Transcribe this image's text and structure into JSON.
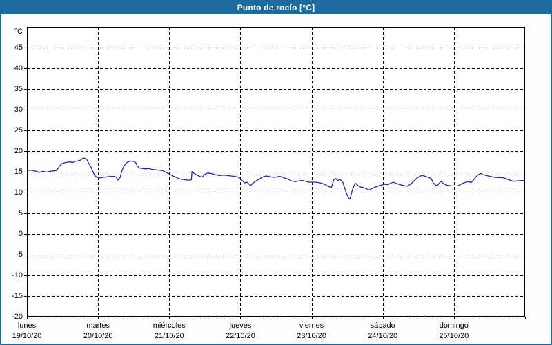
{
  "window": {
    "title": "Punto de rocío [°C]"
  },
  "theme": {
    "titlebar_bg": "#1d6a9e",
    "frame_border": "#1d689c",
    "plot_border": "#000000",
    "grid_color": "#000000",
    "line_color": "#2323bb",
    "text_color": "#000000",
    "background": "#fcfdfc"
  },
  "chart_data": {
    "type": "line",
    "title": "Punto de rocío [°C]",
    "y_axis": {
      "unit": "°C",
      "ylim": [
        -20,
        50
      ],
      "tick_step": 5,
      "ticks": [
        45,
        40,
        35,
        30,
        25,
        20,
        15,
        10,
        5,
        0,
        -5,
        -10,
        -15,
        -20
      ]
    },
    "grid": "dashed",
    "legend": "none",
    "x_days": [
      {
        "name": "lunes",
        "date": "19/10/20"
      },
      {
        "name": "martes",
        "date": "20/10/20"
      },
      {
        "name": "miércoles",
        "date": "21/10/20"
      },
      {
        "name": "jueves",
        "date": "22/10/20"
      },
      {
        "name": "viernes",
        "date": "23/10/20"
      },
      {
        "name": "sábado",
        "date": "24/10/20"
      },
      {
        "name": "domingo",
        "date": "25/10/20"
      }
    ],
    "series": [
      {
        "name": "Punto de rocío",
        "color": "#2323bb",
        "x_unit": "days_since_2020-10-19",
        "segments": [
          [
            [
              0.01,
              15.3
            ],
            [
              0.06,
              15.4
            ],
            [
              0.1,
              15.2
            ],
            [
              0.14,
              15.1
            ],
            [
              0.17,
              14.8
            ],
            [
              0.2,
              15.0
            ],
            [
              0.23,
              15.1
            ],
            [
              0.27,
              14.9
            ],
            [
              0.32,
              15.1
            ],
            [
              0.37,
              15.2
            ],
            [
              0.42,
              15.3
            ],
            [
              0.45,
              16.2
            ],
            [
              0.48,
              16.8
            ],
            [
              0.51,
              17.1
            ],
            [
              0.56,
              17.3
            ],
            [
              0.61,
              17.4
            ],
            [
              0.64,
              17.2
            ],
            [
              0.67,
              17.5
            ],
            [
              0.71,
              17.6
            ],
            [
              0.75,
              17.8
            ],
            [
              0.78,
              18.2
            ],
            [
              0.81,
              18.3
            ],
            [
              0.84,
              18.0
            ],
            [
              0.87,
              17.0
            ],
            [
              0.9,
              16.2
            ],
            [
              0.92,
              15.3
            ],
            [
              0.95,
              14.2
            ],
            [
              0.98,
              13.7
            ],
            [
              1.01,
              13.5
            ],
            [
              1.05,
              13.6
            ],
            [
              1.09,
              13.7
            ],
            [
              1.13,
              13.8
            ],
            [
              1.18,
              13.9
            ],
            [
              1.23,
              13.9
            ],
            [
              1.26,
              13.6
            ],
            [
              1.28,
              13.0
            ],
            [
              1.31,
              13.6
            ],
            [
              1.33,
              15.0
            ],
            [
              1.36,
              16.3
            ],
            [
              1.39,
              17.0
            ],
            [
              1.42,
              17.4
            ],
            [
              1.46,
              17.6
            ],
            [
              1.5,
              17.5
            ],
            [
              1.53,
              17.2
            ],
            [
              1.55,
              16.4
            ],
            [
              1.58,
              15.9
            ],
            [
              1.62,
              15.8
            ],
            [
              1.67,
              15.7
            ],
            [
              1.71,
              15.8
            ],
            [
              1.75,
              15.6
            ],
            [
              1.8,
              15.5
            ],
            [
              1.85,
              15.4
            ],
            [
              1.9,
              15.3
            ],
            [
              1.94,
              15.0
            ],
            [
              1.97,
              14.7
            ],
            [
              2.0,
              14.5
            ],
            [
              2.04,
              14.1
            ],
            [
              2.09,
              13.7
            ],
            [
              2.13,
              13.4
            ],
            [
              2.17,
              13.2
            ],
            [
              2.21,
              13.1
            ],
            [
              2.25,
              13.0
            ],
            [
              2.29,
              13.0
            ],
            [
              2.31,
              13.1
            ],
            [
              2.32,
              15.1
            ],
            [
              2.35,
              14.6
            ],
            [
              2.39,
              14.2
            ],
            [
              2.43,
              13.9
            ],
            [
              2.46,
              13.7
            ],
            [
              2.5,
              14.4
            ],
            [
              2.54,
              14.7
            ],
            [
              2.58,
              14.6
            ],
            [
              2.63,
              14.4
            ],
            [
              2.67,
              14.2
            ],
            [
              2.72,
              14.1
            ],
            [
              2.77,
              14.2
            ],
            [
              2.82,
              14.1
            ],
            [
              2.87,
              14.0
            ],
            [
              2.92,
              13.9
            ],
            [
              2.97,
              13.7
            ],
            [
              3.0,
              13.3
            ],
            [
              3.03,
              12.8
            ],
            [
              3.06,
              12.3
            ],
            [
              3.09,
              12.5
            ],
            [
              3.12,
              12.1
            ],
            [
              3.14,
              11.6
            ],
            [
              3.17,
              12.2
            ],
            [
              3.21,
              12.7
            ],
            [
              3.25,
              13.1
            ],
            [
              3.29,
              13.5
            ],
            [
              3.32,
              13.8
            ],
            [
              3.36,
              14.0
            ],
            [
              3.4,
              13.9
            ],
            [
              3.45,
              13.7
            ],
            [
              3.5,
              13.7
            ],
            [
              3.54,
              13.9
            ],
            [
              3.58,
              13.8
            ],
            [
              3.62,
              13.5
            ],
            [
              3.67,
              13.2
            ],
            [
              3.72,
              12.8
            ],
            [
              3.77,
              12.6
            ],
            [
              3.82,
              12.8
            ],
            [
              3.87,
              12.9
            ],
            [
              3.92,
              12.7
            ],
            [
              3.96,
              12.5
            ],
            [
              4.0,
              12.5
            ],
            [
              4.05,
              12.5
            ],
            [
              4.1,
              12.4
            ],
            [
              4.15,
              12.2
            ],
            [
              4.2,
              11.8
            ],
            [
              4.24,
              11.4
            ],
            [
              4.28,
              11.3
            ],
            [
              4.31,
              13.0
            ],
            [
              4.34,
              13.4
            ],
            [
              4.37,
              12.9
            ],
            [
              4.4,
              13.2
            ],
            [
              4.44,
              12.4
            ],
            [
              4.47,
              10.8
            ],
            [
              4.5,
              9.4
            ],
            [
              4.52,
              8.7
            ],
            [
              4.54,
              8.4
            ],
            [
              4.57,
              10.5
            ],
            [
              4.6,
              11.8
            ],
            [
              4.62,
              12.2
            ],
            [
              4.65,
              11.7
            ],
            [
              4.69,
              11.3
            ],
            [
              4.73,
              11.2
            ],
            [
              4.77,
              10.9
            ],
            [
              4.81,
              10.6
            ],
            [
              4.84,
              10.9
            ],
            [
              4.88,
              11.2
            ],
            [
              4.93,
              11.5
            ],
            [
              4.98,
              11.8
            ],
            [
              5.03,
              12.0
            ],
            [
              5.07,
              11.9
            ],
            [
              5.12,
              12.3
            ],
            [
              5.15,
              12.5
            ],
            [
              5.19,
              12.2
            ],
            [
              5.24,
              11.9
            ],
            [
              5.29,
              11.7
            ],
            [
              5.34,
              11.5
            ],
            [
              5.39,
              12.0
            ],
            [
              5.44,
              12.8
            ],
            [
              5.48,
              13.5
            ],
            [
              5.53,
              14.0
            ],
            [
              5.56,
              14.1
            ],
            [
              5.6,
              13.9
            ],
            [
              5.65,
              13.6
            ],
            [
              5.68,
              13.4
            ],
            [
              5.71,
              12.3
            ],
            [
              5.74,
              11.8
            ],
            [
              5.77,
              11.7
            ],
            [
              5.79,
              12.2
            ],
            [
              5.82,
              12.7
            ],
            [
              5.85,
              12.2
            ],
            [
              5.89,
              11.8
            ],
            [
              5.92,
              11.7
            ],
            [
              5.96,
              11.6
            ],
            [
              5.99,
              11.6
            ]
          ],
          [
            [
              6.06,
              11.7
            ],
            [
              6.1,
              12.0
            ],
            [
              6.13,
              12.3
            ],
            [
              6.17,
              12.5
            ],
            [
              6.21,
              12.6
            ],
            [
              6.24,
              12.4
            ],
            [
              6.27,
              12.9
            ],
            [
              6.31,
              13.8
            ],
            [
              6.35,
              14.4
            ],
            [
              6.38,
              14.6
            ],
            [
              6.41,
              14.3
            ],
            [
              6.46,
              14.1
            ],
            [
              6.51,
              13.9
            ],
            [
              6.56,
              13.7
            ],
            [
              6.61,
              13.6
            ],
            [
              6.66,
              13.6
            ],
            [
              6.71,
              13.5
            ],
            [
              6.75,
              13.2
            ],
            [
              6.8,
              12.9
            ],
            [
              6.85,
              12.7
            ],
            [
              6.9,
              12.8
            ],
            [
              6.95,
              12.9
            ],
            [
              6.99,
              12.9
            ]
          ]
        ]
      }
    ]
  }
}
